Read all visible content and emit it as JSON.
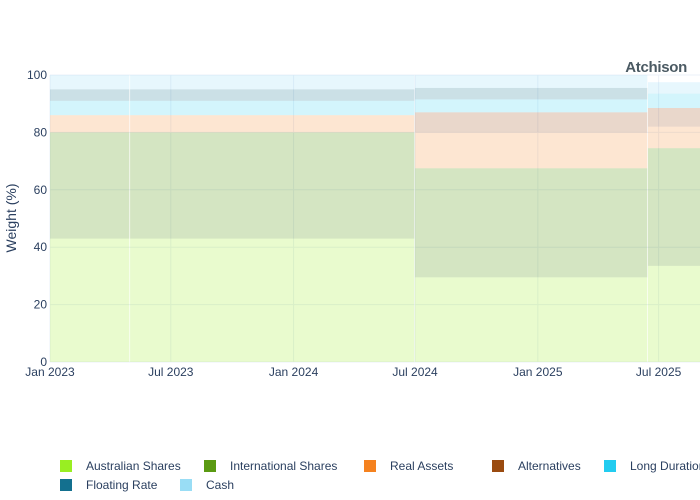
{
  "brand": "Atchison",
  "chart_data": {
    "type": "area",
    "stacked": true,
    "ylabel": "Weight (%)",
    "xlabel": "",
    "ylim": [
      0,
      100
    ],
    "yticks": [
      0,
      20,
      40,
      60,
      80,
      100
    ],
    "xlim": [
      "2023-01-01",
      "2025-09-01"
    ],
    "xticks": [
      {
        "date": "2023-01-01",
        "label": "Jan 2023"
      },
      {
        "date": "2023-07-01",
        "label": "Jul 2023"
      },
      {
        "date": "2024-01-01",
        "label": "Jan 2024"
      },
      {
        "date": "2024-07-01",
        "label": "Jul 2024"
      },
      {
        "date": "2025-01-01",
        "label": "Jan 2025"
      },
      {
        "date": "2025-07-01",
        "label": "Jul 2025"
      }
    ],
    "grid": true,
    "legend_position": "bottom",
    "periods": [
      {
        "start": "2023-01-01",
        "end": "2023-04-30",
        "values": [
          43,
          37,
          6,
          0,
          5,
          4,
          5
        ]
      },
      {
        "start": "2023-05-01",
        "end": "2024-06-30",
        "values": [
          43,
          37,
          6,
          0,
          5,
          4,
          5
        ]
      },
      {
        "start": "2024-07-01",
        "end": "2025-06-14",
        "values": [
          29.5,
          38,
          12.5,
          7,
          4.5,
          4,
          4.5
        ]
      },
      {
        "start": "2025-06-15",
        "end": "2025-09-01",
        "values": [
          33.5,
          41,
          7.5,
          6.5,
          5,
          0,
          4
        ]
      }
    ],
    "series": [
      {
        "name": "Australian Shares",
        "color": "#99ee22"
      },
      {
        "name": "International Shares",
        "color": "#5a9a12"
      },
      {
        "name": "Real Assets",
        "color": "#f5821f"
      },
      {
        "name": "Alternatives",
        "color": "#9a4b10"
      },
      {
        "name": "Long Duration",
        "color": "#22ccf0"
      },
      {
        "name": "Floating Rate",
        "color": "#13708f"
      },
      {
        "name": "Cash",
        "color": "#99ddf5"
      }
    ]
  }
}
